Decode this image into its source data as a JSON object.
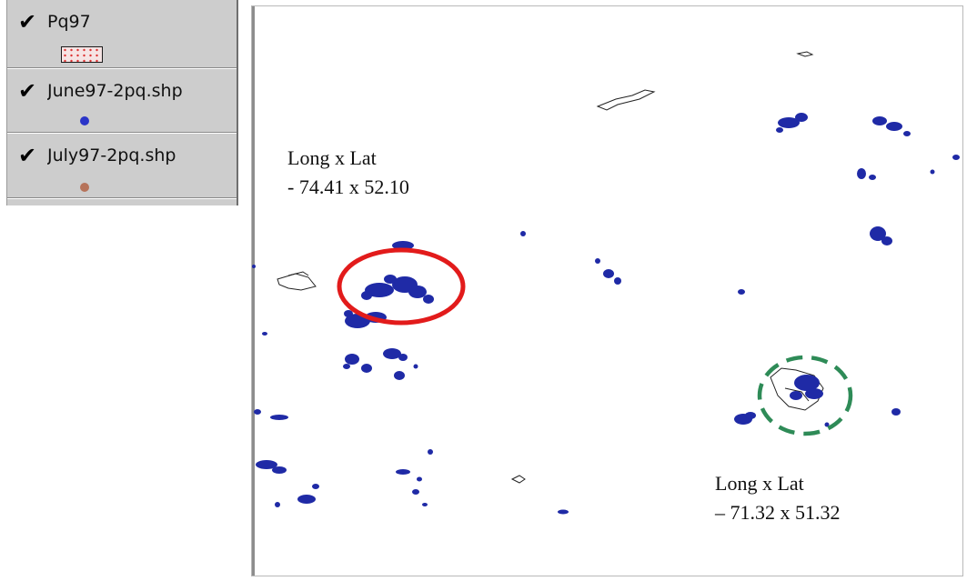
{
  "legend": {
    "layers": [
      {
        "name": "Pq97",
        "checked": true,
        "symbol": "polygon-fill",
        "icon": "checkmark-icon",
        "color": "#d33333"
      },
      {
        "name": "June97-2pq.shp",
        "checked": true,
        "symbol": "point",
        "icon": "checkmark-icon",
        "color": "#2b35c8"
      },
      {
        "name": "July97-2pq.shp",
        "checked": true,
        "symbol": "point",
        "icon": "checkmark-icon",
        "color": "#b6735a"
      }
    ]
  },
  "map": {
    "annotations": [
      {
        "title": "Long x Lat",
        "value": "- 74.41 x 52.10",
        "highlight": "red-ellipse",
        "color": "#e21b1b"
      },
      {
        "title": "Long x Lat",
        "value": "– 71.32 x 51.32",
        "highlight": "green-dashed-circle",
        "color": "#2e8b57"
      }
    ],
    "point_color": "#1f2aa6",
    "outline_color": "#222222"
  }
}
